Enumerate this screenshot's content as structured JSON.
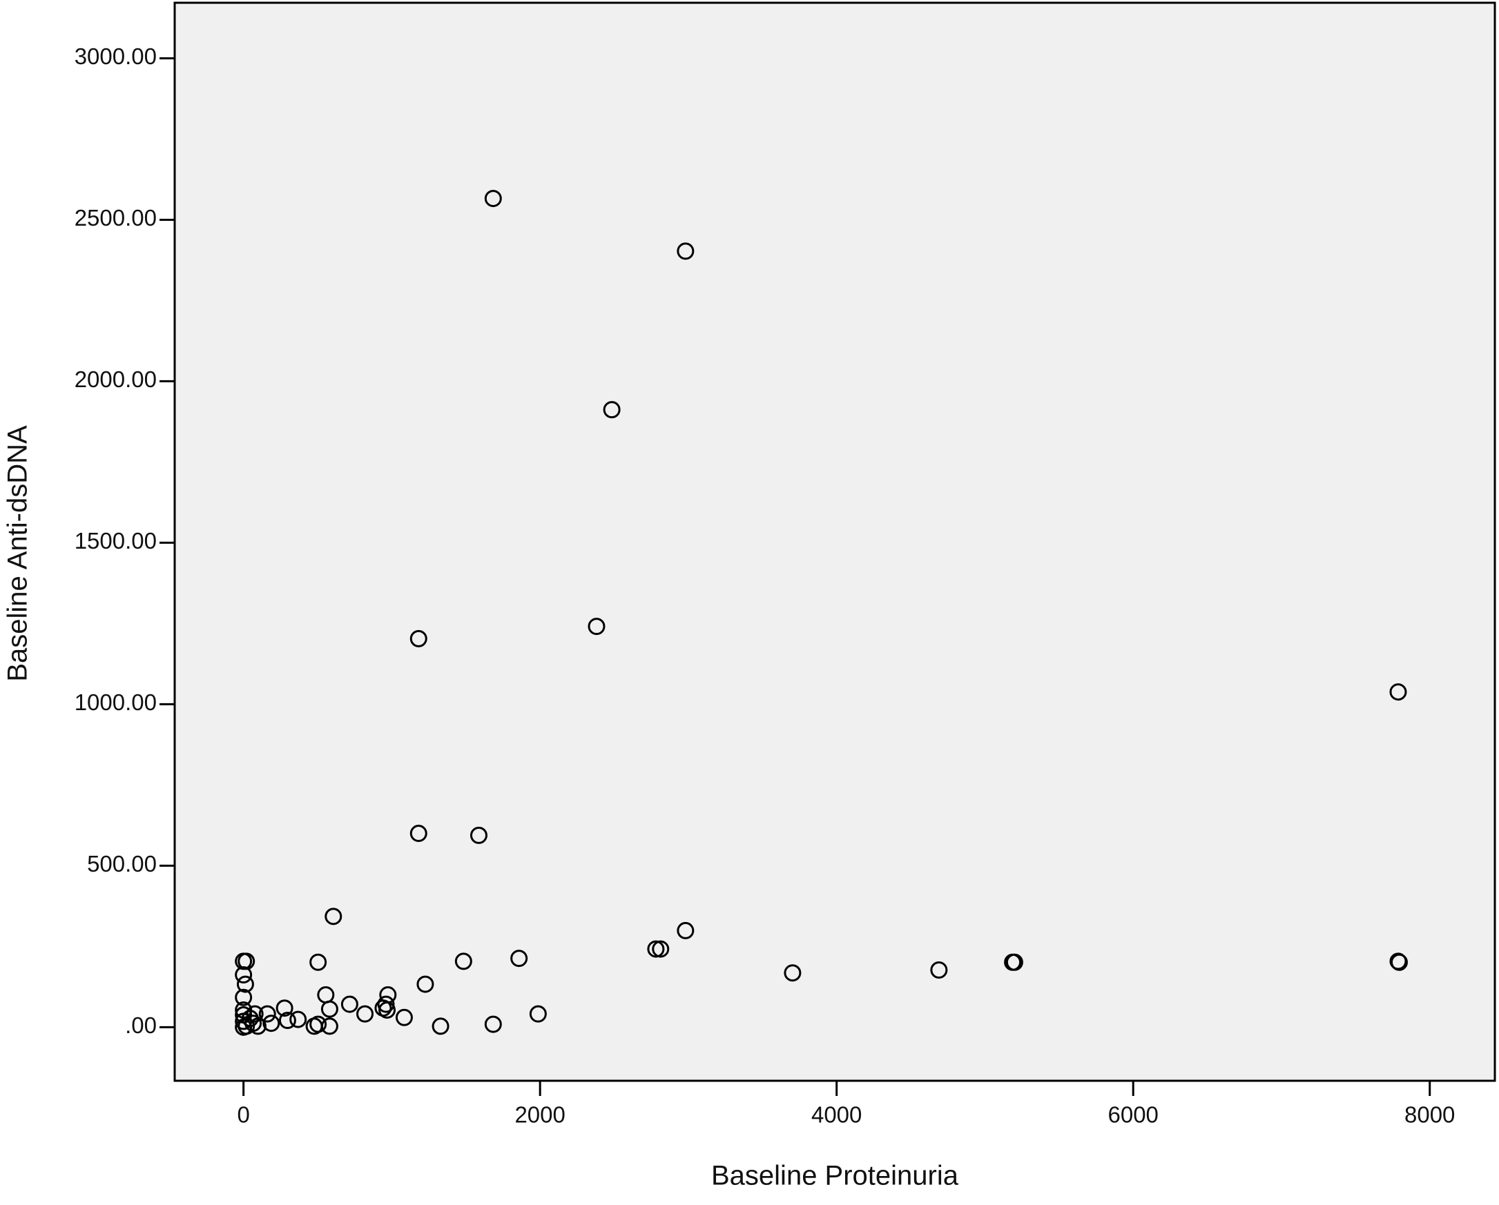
{
  "chart_data": {
    "type": "scatter",
    "x_label": "Baseline Proteinuria",
    "y_label": "Baseline Anti-dsDNA",
    "x": [
      1684,
      2981,
      2484,
      1181,
      2381,
      7787,
      1181,
      1587,
      606,
      2981,
      2781,
      2813,
      1858,
      1484,
      503,
      5187,
      5200,
      7787,
      7794,
      3703,
      4690,
      1226,
      1987,
      1684,
      1329,
      1084,
      974,
      961,
      942,
      968,
      819,
      716,
      581,
      555,
      581,
      477,
      503,
      368,
      277,
      297,
      187,
      161,
      77,
      97,
      19,
      0,
      0,
      13,
      0,
      0,
      0,
      19,
      45,
      0,
      65,
      0
    ],
    "values": [
      2566,
      2403,
      1912,
      1203,
      1241,
      1038,
      600,
      594,
      343,
      299,
      242,
      242,
      213,
      204,
      201,
      201,
      201,
      204,
      201,
      168,
      177,
      133,
      41,
      9,
      3,
      30,
      100,
      71,
      59,
      53,
      41,
      71,
      56,
      100,
      3,
      3,
      9,
      24,
      59,
      21,
      12,
      41,
      41,
      3,
      204,
      204,
      162,
      133,
      92,
      53,
      18,
      3,
      27,
      0,
      12,
      38
    ],
    "color": "#000000",
    "background": "#f0f0f0",
    "xlim": [
      -464,
      8439
    ],
    "ylim": [
      -166,
      3172
    ],
    "xticks": [
      0,
      2000,
      4000,
      6000,
      8000
    ],
    "yticks": [
      {
        "value": 0,
        "label": ".00"
      },
      {
        "value": 500,
        "label": "500.00"
      },
      {
        "value": 1000,
        "label": "1000.00"
      },
      {
        "value": 1500,
        "label": "1500.00"
      },
      {
        "value": 2000,
        "label": "2000.00"
      },
      {
        "value": 2500,
        "label": "2500.00"
      },
      {
        "value": 3000,
        "label": "3000.00"
      }
    ],
    "grid": false
  }
}
